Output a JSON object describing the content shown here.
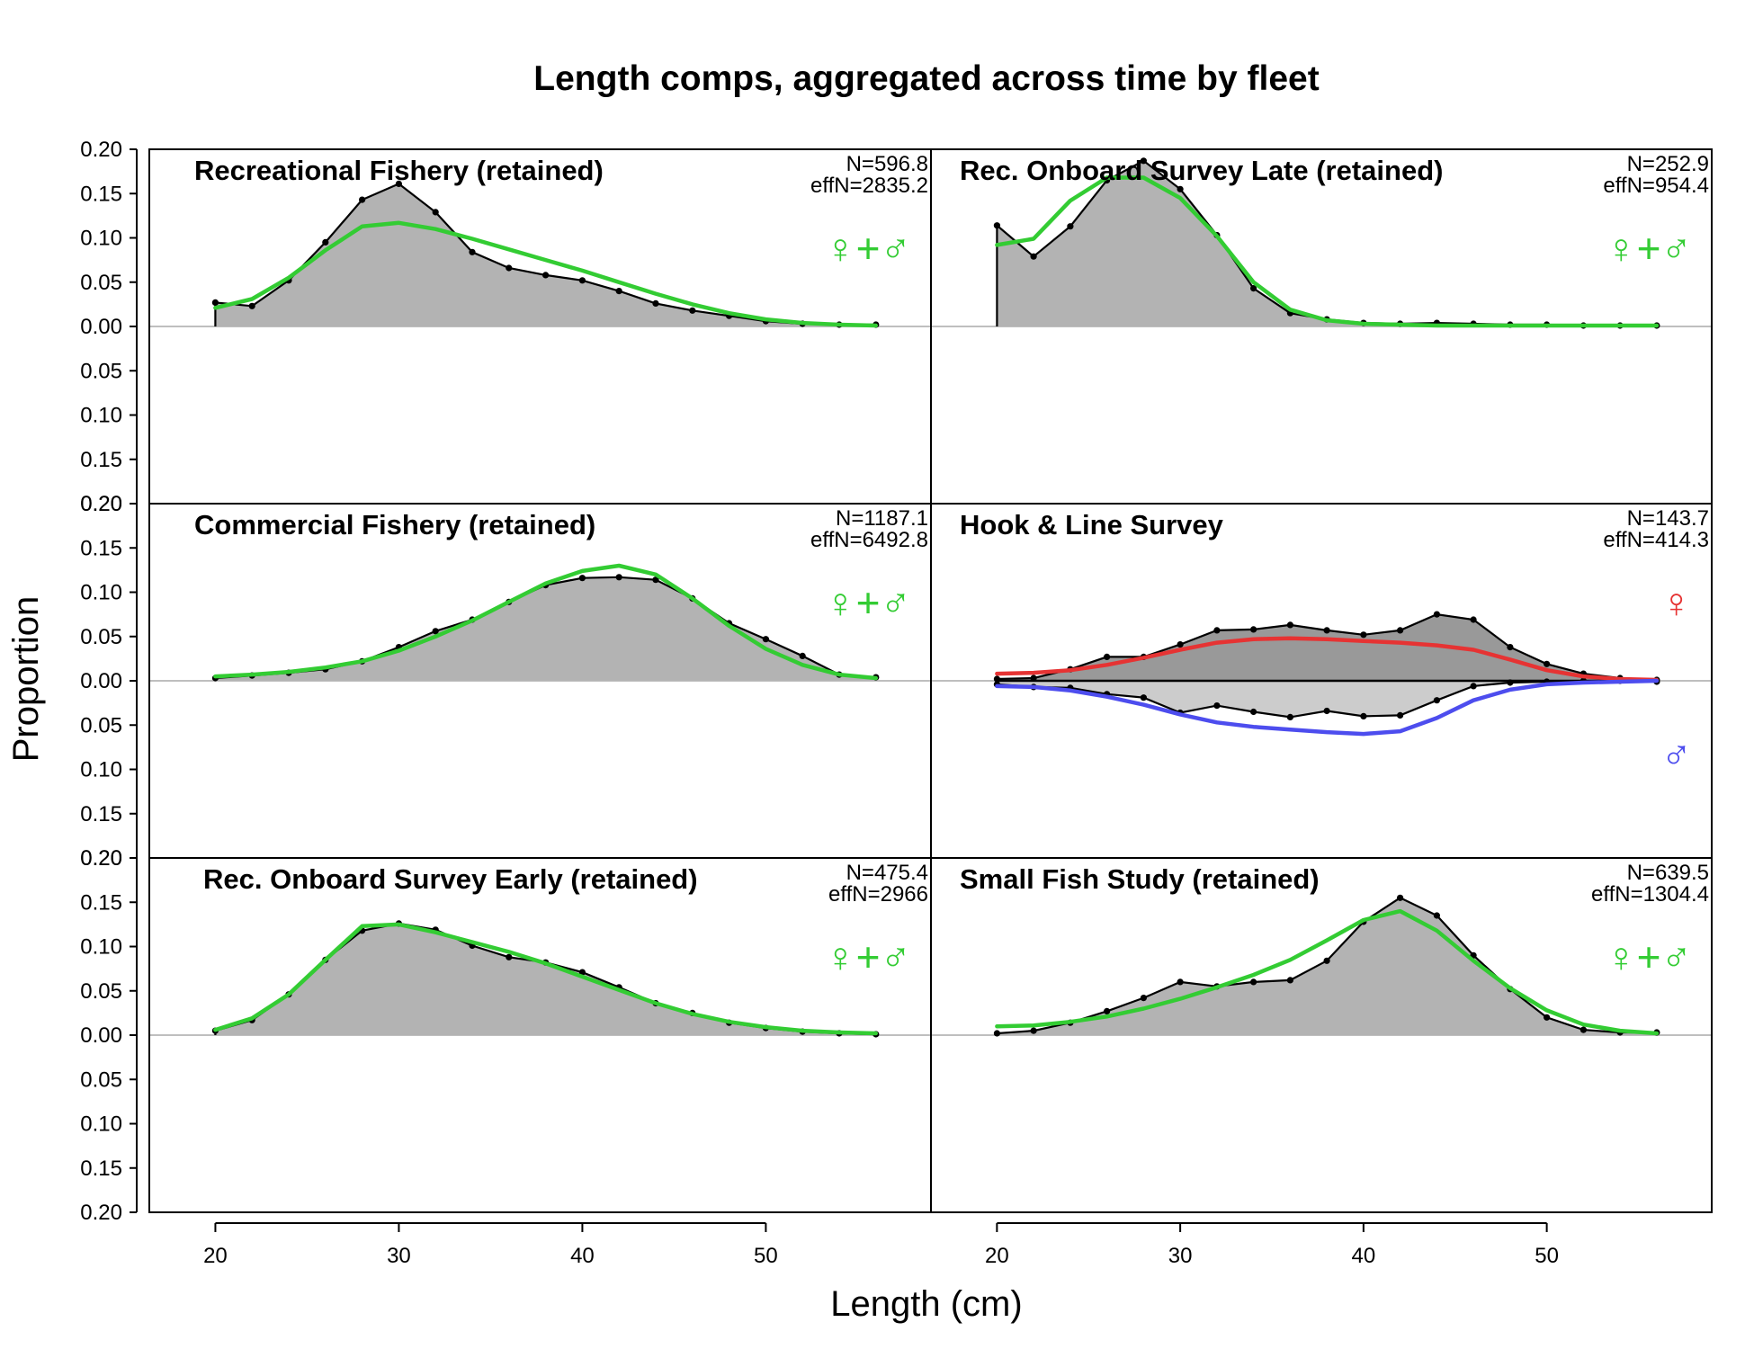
{
  "chart_data": {
    "type": "area",
    "title": "Length comps, aggregated across time by fleet",
    "xlabel": "Length (cm)",
    "ylabel": "Proportion",
    "xlim": [
      16.4,
      59.0
    ],
    "ylim": [
      -0.2,
      0.2
    ],
    "x_ticks": [
      20,
      30,
      40,
      50
    ],
    "y_ticks": [
      0.2,
      0.15,
      0.1,
      0.05,
      0.0,
      0.05,
      0.1,
      0.15,
      0.2
    ],
    "y_tick_labels": [
      "0.20",
      "0.15",
      "0.10",
      "0.05",
      "0.00",
      "0.05",
      "0.10",
      "0.15",
      "0.20"
    ],
    "layout": "3 rows x 2 columns, shared axes",
    "colors": {
      "observed_fill": "#b3b3b3",
      "observed_fill_female": "#999999",
      "observed_fill_male": "#cccccc",
      "observed_line": "#000000",
      "expected_combined": "#33cc33",
      "expected_female": "#e63333",
      "expected_male": "#4d4dee",
      "zero_line": "#bfbfbf"
    },
    "x": [
      20,
      22,
      24,
      26,
      28,
      30,
      32,
      34,
      36,
      38,
      40,
      42,
      44,
      46,
      48,
      50,
      52,
      54,
      56
    ],
    "panels": [
      {
        "title": "Recreational Fishery (retained)",
        "n_label": "N=596.8",
        "effn_label": "effN=2835.2",
        "sex": "combined",
        "sex_symbol": "♀+♂",
        "observed": [
          0.027,
          0.023,
          0.052,
          0.095,
          0.143,
          0.161,
          0.129,
          0.084,
          0.066,
          0.058,
          0.052,
          0.04,
          0.026,
          0.018,
          0.012,
          0.006,
          0.003,
          0.002,
          0.002
        ],
        "expected": [
          0.021,
          0.031,
          0.055,
          0.086,
          0.113,
          0.117,
          0.11,
          0.099,
          0.087,
          0.075,
          0.063,
          0.05,
          0.037,
          0.025,
          0.015,
          0.008,
          0.004,
          0.002,
          0.001
        ]
      },
      {
        "title": "Rec. Onboard Survey Late (retained)",
        "n_label": "N=252.9",
        "effn_label": "effN=954.4",
        "sex": "combined",
        "sex_symbol": "♀+♂",
        "observed": [
          0.114,
          0.079,
          0.113,
          0.165,
          0.187,
          0.155,
          0.103,
          0.043,
          0.015,
          0.008,
          0.004,
          0.003,
          0.004,
          0.003,
          0.002,
          0.002,
          0.001,
          0.001,
          0.001
        ],
        "expected": [
          0.092,
          0.099,
          0.142,
          0.168,
          0.168,
          0.145,
          0.102,
          0.05,
          0.019,
          0.007,
          0.003,
          0.002,
          0.001,
          0.001,
          0.001,
          0.001,
          0.001,
          0.001,
          0.001
        ]
      },
      {
        "title": "Commercial Fishery (retained)",
        "n_label": "N=1187.1",
        "effn_label": "effN=6492.8",
        "sex": "combined",
        "sex_symbol": "♀+♂",
        "observed": [
          0.003,
          0.006,
          0.009,
          0.013,
          0.022,
          0.038,
          0.056,
          0.069,
          0.089,
          0.108,
          0.116,
          0.117,
          0.114,
          0.093,
          0.065,
          0.047,
          0.028,
          0.007,
          0.004
        ],
        "expected": [
          0.005,
          0.007,
          0.01,
          0.015,
          0.022,
          0.034,
          0.05,
          0.068,
          0.089,
          0.11,
          0.124,
          0.13,
          0.12,
          0.093,
          0.062,
          0.036,
          0.018,
          0.007,
          0.003
        ]
      },
      {
        "title": "Hook & Line Survey",
        "n_label": "N=143.7",
        "effn_label": "effN=414.3",
        "sex": "separate",
        "female_symbol": "♀",
        "male_symbol": "♂",
        "female_observed": [
          0.002,
          0.003,
          0.013,
          0.027,
          0.027,
          0.041,
          0.057,
          0.058,
          0.063,
          0.057,
          0.052,
          0.057,
          0.075,
          0.069,
          0.038,
          0.019,
          0.008,
          0.003,
          0.001
        ],
        "female_expected": [
          0.008,
          0.009,
          0.012,
          0.018,
          0.026,
          0.035,
          0.043,
          0.047,
          0.048,
          0.047,
          0.045,
          0.043,
          0.04,
          0.035,
          0.024,
          0.012,
          0.005,
          0.002,
          0.001
        ],
        "male_observed": [
          0.004,
          0.007,
          0.008,
          0.015,
          0.019,
          0.036,
          0.028,
          0.035,
          0.041,
          0.034,
          0.04,
          0.039,
          0.022,
          0.006,
          0.002,
          0.001,
          0.0,
          0.0,
          0.001
        ],
        "male_expected": [
          0.006,
          0.007,
          0.011,
          0.018,
          0.027,
          0.038,
          0.047,
          0.052,
          0.055,
          0.058,
          0.06,
          0.057,
          0.042,
          0.022,
          0.01,
          0.004,
          0.002,
          0.001,
          0.0
        ]
      },
      {
        "title": "Rec. Onboard Survey Early (retained)",
        "n_label": "N=475.4",
        "effn_label": "effN=2966",
        "sex": "combined",
        "sex_symbol": "♀+♂",
        "observed": [
          0.005,
          0.017,
          0.046,
          0.085,
          0.118,
          0.126,
          0.119,
          0.101,
          0.088,
          0.082,
          0.071,
          0.054,
          0.036,
          0.025,
          0.014,
          0.008,
          0.004,
          0.002,
          0.001
        ],
        "expected": [
          0.006,
          0.019,
          0.046,
          0.085,
          0.123,
          0.125,
          0.116,
          0.105,
          0.094,
          0.081,
          0.066,
          0.051,
          0.036,
          0.024,
          0.015,
          0.009,
          0.005,
          0.003,
          0.002
        ]
      },
      {
        "title": "Small Fish Study (retained)",
        "n_label": "N=639.5",
        "effn_label": "effN=1304.4",
        "sex": "combined",
        "sex_symbol": "♀+♂",
        "observed": [
          0.002,
          0.005,
          0.014,
          0.027,
          0.042,
          0.06,
          0.055,
          0.06,
          0.062,
          0.084,
          0.128,
          0.155,
          0.135,
          0.09,
          0.052,
          0.02,
          0.006,
          0.003,
          0.003
        ],
        "expected": [
          0.01,
          0.011,
          0.015,
          0.021,
          0.03,
          0.041,
          0.054,
          0.068,
          0.085,
          0.107,
          0.13,
          0.14,
          0.118,
          0.084,
          0.053,
          0.028,
          0.012,
          0.005,
          0.002
        ]
      }
    ]
  }
}
